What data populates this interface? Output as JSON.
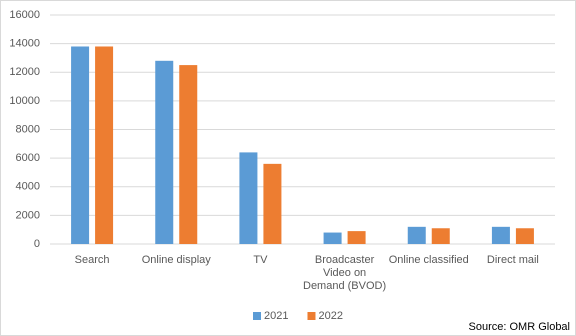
{
  "chart_data": {
    "type": "bar",
    "categories": [
      "Search",
      "Online display",
      "TV",
      "Broadcaster Video on Demand (BVOD)",
      "Online classified",
      "Direct mail"
    ],
    "series": [
      {
        "name": "2021",
        "color": "#5b9bd5",
        "values": [
          13800,
          12800,
          6400,
          800,
          1200,
          1200
        ]
      },
      {
        "name": "2022",
        "color": "#ed7d31",
        "values": [
          13800,
          12500,
          5600,
          900,
          1100,
          1100
        ]
      }
    ],
    "ylim": [
      0,
      16000
    ],
    "yticks": [
      0,
      2000,
      4000,
      6000,
      8000,
      10000,
      12000,
      14000,
      16000
    ],
    "grid": true,
    "legend": "bottom",
    "source": "Source: OMR Global"
  }
}
